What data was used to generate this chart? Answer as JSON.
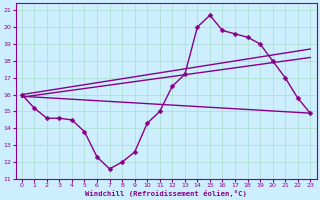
{
  "xlabel": "Windchill (Refroidissement éolien,°C)",
  "bg_color": "#cceeff",
  "grid_color": "#aaddcc",
  "line_color": "#880088",
  "xlim": [
    -0.5,
    23.5
  ],
  "ylim": [
    11,
    21.4
  ],
  "xticks": [
    0,
    1,
    2,
    3,
    4,
    5,
    6,
    7,
    8,
    9,
    10,
    11,
    12,
    13,
    14,
    15,
    16,
    17,
    18,
    19,
    20,
    21,
    22,
    23
  ],
  "yticks": [
    11,
    12,
    13,
    14,
    15,
    16,
    17,
    18,
    19,
    20,
    21
  ],
  "line1_x": [
    0,
    1,
    2,
    3,
    4,
    5,
    6,
    7,
    8,
    9,
    10,
    11,
    12,
    13,
    14,
    15,
    16,
    17,
    18,
    19,
    20,
    21,
    22,
    23
  ],
  "line1_y": [
    16.0,
    15.2,
    14.6,
    14.6,
    14.5,
    13.8,
    12.3,
    11.6,
    12.0,
    12.6,
    14.3,
    15.0,
    16.5,
    17.2,
    20.0,
    20.7,
    19.8,
    19.6,
    19.4,
    19.0,
    18.0,
    17.0,
    15.8,
    14.9
  ],
  "line2_x": [
    0,
    23
  ],
  "line2_y": [
    15.9,
    14.9
  ],
  "line3_x": [
    0,
    23
  ],
  "line3_y": [
    16.0,
    18.7
  ],
  "line4_x": [
    0,
    23
  ],
  "line4_y": [
    15.85,
    18.2
  ],
  "marker": "D",
  "markersize": 2.5,
  "linewidth": 1.0
}
